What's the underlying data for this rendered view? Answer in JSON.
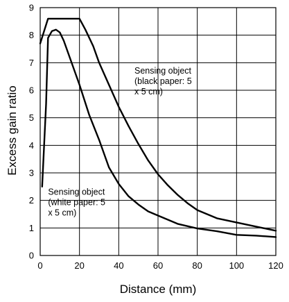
{
  "chart_data": {
    "type": "line",
    "title": "",
    "xlabel": "Distance (mm)",
    "ylabel": "Excess gain ratio",
    "xlim": [
      0,
      120
    ],
    "ylim": [
      0,
      9
    ],
    "x_ticks": [
      "0",
      "20",
      "40",
      "60",
      "80",
      "100",
      "120"
    ],
    "y_ticks": [
      "0",
      "1",
      "2",
      "3",
      "4",
      "5",
      "6",
      "7",
      "8",
      "9"
    ],
    "grid": true,
    "legend": "none",
    "series": [
      {
        "x": [
          0,
          4,
          20,
          23,
          27,
          30,
          35,
          40,
          45,
          50,
          55,
          60,
          65,
          70,
          75,
          80,
          90,
          100,
          110,
          120
        ],
        "y": [
          7.7,
          8.6,
          8.6,
          8.2,
          7.6,
          7.0,
          6.2,
          5.4,
          4.7,
          4.05,
          3.45,
          2.95,
          2.55,
          2.2,
          1.9,
          1.65,
          1.35,
          1.2,
          1.05,
          0.9
        ]
      },
      {
        "x": [
          1,
          3,
          4,
          6,
          8,
          10,
          12,
          15,
          20,
          25,
          30,
          35,
          40,
          45,
          50,
          55,
          60,
          70,
          80,
          90,
          100,
          110,
          120
        ],
        "y": [
          2.5,
          5.5,
          7.9,
          8.15,
          8.2,
          8.1,
          7.8,
          7.2,
          6.2,
          5.1,
          4.2,
          3.2,
          2.6,
          2.15,
          1.85,
          1.6,
          1.45,
          1.15,
          0.98,
          0.88,
          0.75,
          0.72,
          0.67
        ]
      }
    ],
    "annotations": [
      {
        "lines": [
          "Sensing object",
          "(black paper: 5",
          "x 5 cm)"
        ],
        "x": 48,
        "y": 6.6
      },
      {
        "lines": [
          "Sensing object",
          "(white paper: 5",
          "x 5 cm)"
        ],
        "x": 4,
        "y": 2.2
      }
    ]
  }
}
